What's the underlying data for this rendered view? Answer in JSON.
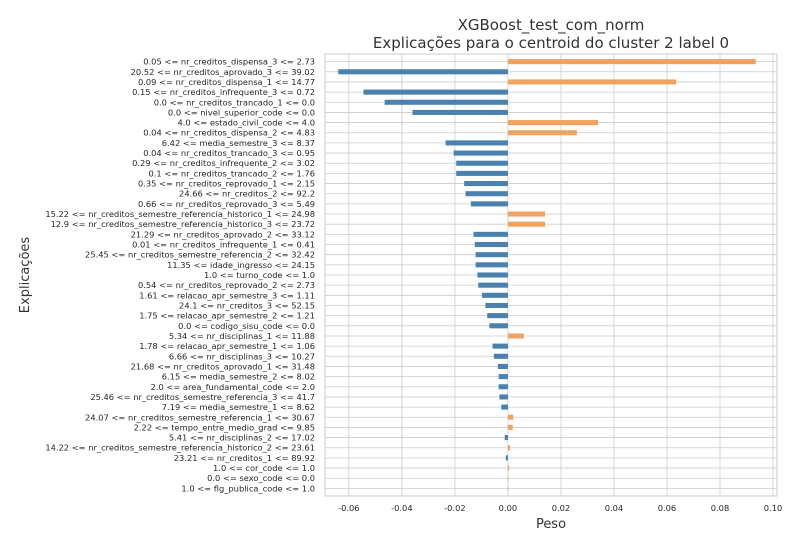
{
  "chart_data": {
    "type": "bar",
    "orientation": "horizontal",
    "title": "XGBoost_test_com_norm",
    "subtitle": "Explicações para o centroid do cluster 2 label 0",
    "xlabel": "Peso",
    "ylabel": "Explicações",
    "xlim": [
      -0.069,
      0.1015
    ],
    "xticks": [
      "-0.06",
      "-0.04",
      "-0.02",
      "0.00",
      "0.02",
      "0.04",
      "0.06",
      "0.08",
      "0.10"
    ],
    "grid": true,
    "legend": "none",
    "colors": {
      "positive": "#f0a361",
      "negative": "#4a81ae",
      "grid": "#cccccc",
      "background": "#ffffff"
    },
    "categories": [
      "0.05 <= nr_creditos_dispensa_3 <= 2.73",
      "20.52 <= nr_creditos_aprovado_3 <= 39.02",
      "0.09 <= nr_creditos_dispensa_1 <= 14.77",
      "0.15 <= nr_creditos_infrequente_3 <= 0.72",
      "0.0 <= nr_creditos_trancado_1 <= 0.0",
      "0.0 <= nivel_superior_code <= 0.0",
      "4.0 <= estado_civil_code <= 4.0",
      "0.04 <= nr_creditos_dispensa_2 <= 4.83",
      "6.42 <= media_semestre_3 <= 8.37",
      "0.04 <= nr_creditos_trancado_3 <= 0.95",
      "0.29 <= nr_creditos_infrequente_2 <= 3.02",
      "0.1 <= nr_creditos_trancado_2 <= 1.76",
      "0.35 <= nr_creditos_reprovado_1 <= 2.15",
      "24.66 <= nr_creditos_2 <= 92.2",
      "0.66 <= nr_creditos_reprovado_3 <= 5.49",
      "15.22 <= nr_creditos_semestre_referencia_historico_1 <= 24.98",
      "12.9 <= nr_creditos_semestre_referencia_historico_3 <= 23.72",
      "21.29 <= nr_creditos_aprovado_2 <= 33.12",
      "0.01 <= nr_creditos_infrequente_1 <= 0.41",
      "25.45 <= nr_creditos_semestre_referencia_2 <= 32.42",
      "11.35 <= idade_ingresso <= 24.15",
      "1.0 <= turno_code <= 1.0",
      "0.54 <= nr_creditos_reprovado_2 <= 2.73",
      "1.61 <= relacao_apr_semestre_3 <= 1.11",
      "24.1 <= nr_creditos_3 <= 52.15",
      "1.75 <= relacao_apr_semestre_2 <= 1.21",
      "0.0 <= codigo_sisu_code <= 0.0",
      "5.34 <= nr_disciplinas_1 <= 11.88",
      "1.78 <= relacao_apr_semestre_1 <= 1.06",
      "6.66 <= nr_disciplinas_3 <= 10.27",
      "21.68 <= nr_creditos_aprovado_1 <= 31.48",
      "6.15 <= media_semestre_2 <= 8.02",
      "2.0 <= area_fundamental_code <= 2.0",
      "25.46 <= nr_creditos_semestre_referencia_3 <= 41.7",
      "7.19 <= media_semestre_1 <= 8.62",
      "24.07 <= nr_creditos_semestre_referencia_1 <= 30.67",
      "2.22 <= tempo_entre_medio_grad <= 9.85",
      "5.41 <= nr_disciplinas_2 <= 17.02",
      "14.22 <= nr_creditos_semestre_referencia_historico_2 <= 23.61",
      "23.21 <= nr_creditos_1 <= 89.92",
      "1.0 <= cor_code <= 1.0",
      "0.0 <= sexo_code <= 0.0",
      "1.0 <= flg_publica_code <= 1.0"
    ],
    "values": [
      0.0935,
      -0.064,
      0.0635,
      -0.0545,
      -0.0465,
      -0.036,
      0.034,
      0.026,
      -0.0235,
      -0.0205,
      -0.0195,
      -0.0195,
      -0.0165,
      -0.016,
      -0.014,
      0.014,
      0.014,
      -0.013,
      -0.0125,
      -0.0122,
      -0.0122,
      -0.0115,
      -0.0112,
      -0.0098,
      -0.0085,
      -0.0078,
      -0.007,
      0.006,
      -0.0058,
      -0.0053,
      -0.0038,
      -0.0035,
      -0.0035,
      -0.0032,
      -0.0025,
      0.002,
      0.0018,
      -0.0012,
      0.0008,
      -0.0008,
      0.0005,
      0.0001,
      0.0001
    ]
  }
}
